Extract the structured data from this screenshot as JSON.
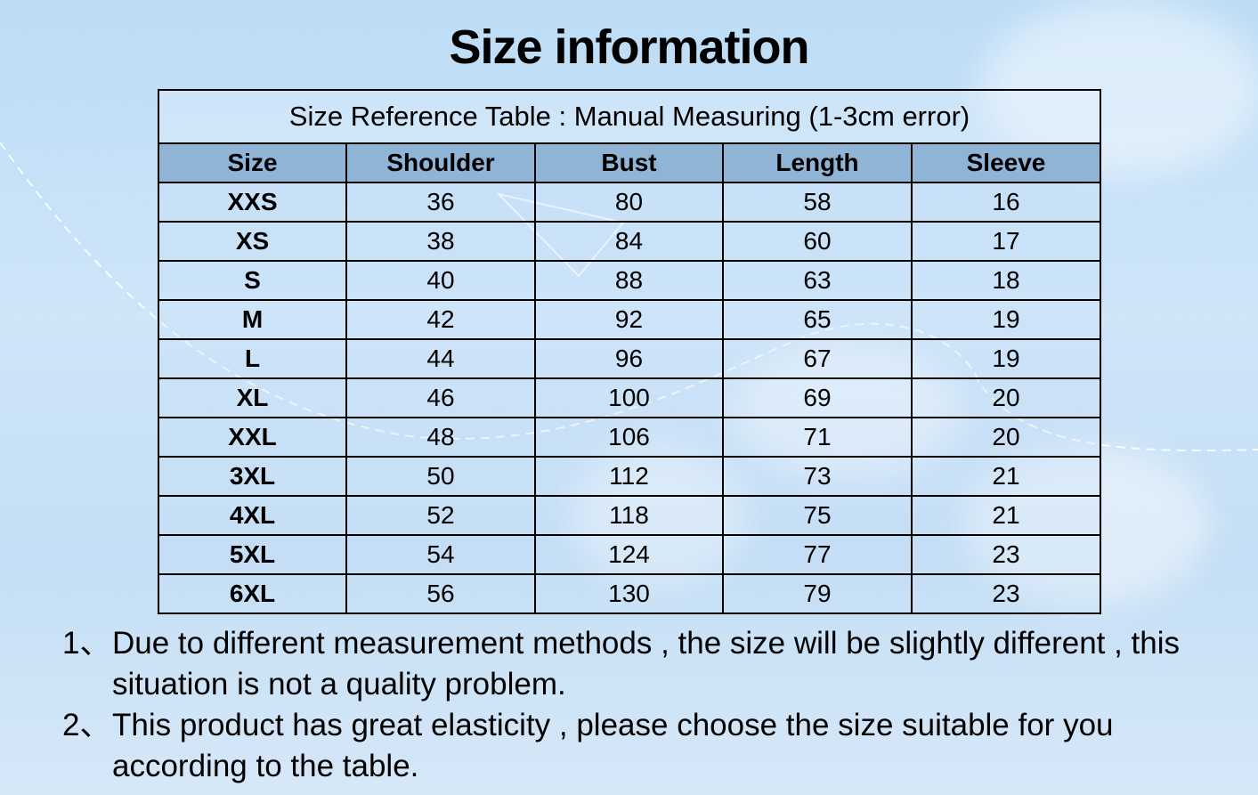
{
  "title": "Size information",
  "table": {
    "caption": "Size Reference Table : Manual Measuring (1-3cm error)",
    "headers": [
      "Size",
      "Shoulder",
      "Bust",
      "Length",
      "Sleeve"
    ],
    "rows": [
      [
        "XXS",
        "36",
        "80",
        "58",
        "16"
      ],
      [
        "XS",
        "38",
        "84",
        "60",
        "17"
      ],
      [
        "S",
        "40",
        "88",
        "63",
        "18"
      ],
      [
        "M",
        "42",
        "92",
        "65",
        "19"
      ],
      [
        "L",
        "44",
        "96",
        "67",
        "19"
      ],
      [
        "XL",
        "46",
        "100",
        "69",
        "20"
      ],
      [
        "XXL",
        "48",
        "106",
        "71",
        "20"
      ],
      [
        "3XL",
        "50",
        "112",
        "73",
        "21"
      ],
      [
        "4XL",
        "52",
        "118",
        "75",
        "21"
      ],
      [
        "5XL",
        "54",
        "124",
        "77",
        "23"
      ],
      [
        "6XL",
        "56",
        "130",
        "79",
        "23"
      ]
    ],
    "header_color": "#8fb4d6"
  },
  "notes": [
    {
      "num": "1、",
      "text": "Due to different measurement methods , the size will be slightly different , this situation is not a quality problem."
    },
    {
      "num": "2、",
      "text": "This product has great elasticity , please choose the size suitable for you according to the table."
    }
  ]
}
